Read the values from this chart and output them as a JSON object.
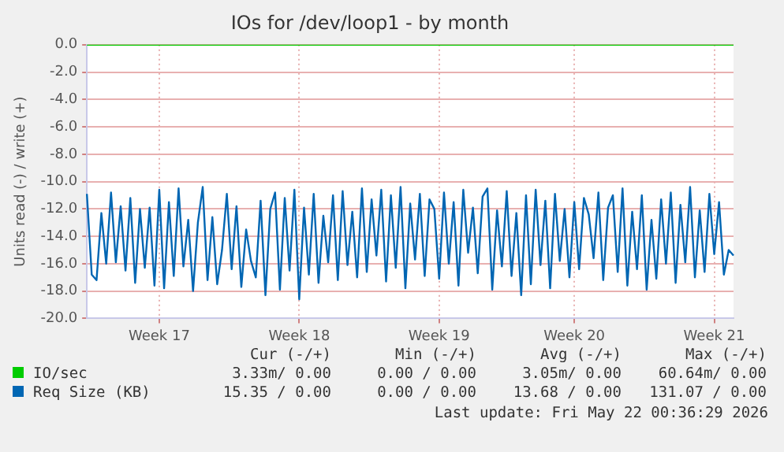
{
  "chart_data": {
    "type": "line",
    "title": "IOs for /dev/loop1 - by month",
    "ylabel": "Units read (-) / write (+)",
    "categories": [
      null,
      null,
      null,
      null,
      null,
      null,
      null,
      null,
      null,
      null,
      null,
      null,
      null,
      null,
      null,
      "Week 17",
      null,
      null,
      null,
      null,
      null,
      null,
      null,
      null,
      null,
      null,
      null,
      null,
      null,
      null,
      null,
      null,
      null,
      null,
      null,
      null,
      null,
      null,
      null,
      null,
      null,
      null,
      null,
      null,
      "Week 18",
      null,
      null,
      null,
      null,
      null,
      null,
      null,
      null,
      null,
      null,
      null,
      null,
      null,
      null,
      null,
      null,
      null,
      null,
      null,
      null,
      null,
      null,
      null,
      null,
      null,
      null,
      null,
      null,
      "Week 19",
      null,
      null,
      null,
      null,
      null,
      null,
      null,
      null,
      null,
      null,
      null,
      null,
      null,
      null,
      null,
      null,
      null,
      null,
      null,
      null,
      null,
      null,
      null,
      null,
      null,
      null,
      null,
      "Week 20",
      null,
      null,
      null,
      null,
      null,
      null,
      null,
      null,
      null,
      null,
      null,
      null,
      null,
      null,
      null,
      null,
      null,
      null,
      null,
      null,
      null,
      null,
      null,
      null,
      null,
      null,
      null,
      null,
      "Week 21",
      null,
      null,
      null,
      null
    ],
    "ylim": [
      -20,
      0
    ],
    "yticks": [
      {
        "value": 0,
        "label": "0.0"
      },
      {
        "value": -2,
        "label": "-2.0"
      },
      {
        "value": -4,
        "label": "-4.0"
      },
      {
        "value": -6,
        "label": "-6.0"
      },
      {
        "value": -8,
        "label": "-8.0"
      },
      {
        "value": -10,
        "label": "-10.0"
      },
      {
        "value": -12,
        "label": "-12.0"
      },
      {
        "value": -14,
        "label": "-14.0"
      },
      {
        "value": -16,
        "label": "-16.0"
      },
      {
        "value": -18,
        "label": "-18.0"
      },
      {
        "value": -20,
        "label": "-20.0"
      }
    ],
    "grid": true,
    "legend": "bottom",
    "marker": "none",
    "line_style": "solid",
    "series": [
      {
        "name": "IO/sec",
        "color": "#00cc00",
        "values": [
          0,
          0,
          0,
          0,
          0,
          0,
          0,
          0,
          0,
          0,
          0,
          0,
          0,
          0,
          0,
          0,
          0,
          0,
          0,
          0,
          0,
          0,
          0,
          0,
          0,
          0,
          0,
          0,
          0,
          0,
          0,
          0,
          0,
          0,
          0,
          0,
          0,
          0,
          0,
          0,
          0,
          0,
          0,
          0,
          0,
          0,
          0,
          0,
          0,
          0,
          0,
          0,
          0,
          0,
          0,
          0,
          0,
          0,
          0,
          0,
          0,
          0,
          0,
          0,
          0,
          0,
          0,
          0,
          0,
          0,
          0,
          0,
          0,
          0,
          0,
          0,
          0,
          0,
          0,
          0,
          0,
          0,
          0,
          0,
          0,
          0,
          0,
          0,
          0,
          0,
          0,
          0,
          0,
          0,
          0,
          0,
          0,
          0,
          0,
          0,
          0,
          0,
          0,
          0,
          0,
          0,
          0,
          0,
          0,
          0,
          0,
          0,
          0,
          0,
          0,
          0,
          0,
          0,
          0,
          0,
          0,
          0,
          0,
          0,
          0,
          0,
          0,
          0,
          0,
          0,
          0,
          0,
          0,
          0,
          0
        ]
      },
      {
        "name": "Req Size (KB)",
        "color": "#0066b3",
        "values": [
          -10.9,
          -16.8,
          -17.2,
          -12.3,
          -16.0,
          -10.8,
          -15.9,
          -11.8,
          -16.5,
          -11.2,
          -17.4,
          -12.0,
          -16.3,
          -11.9,
          -17.6,
          -10.6,
          -17.8,
          -11.5,
          -16.9,
          -10.5,
          -16.2,
          -12.8,
          -18.0,
          -13.0,
          -10.4,
          -17.2,
          -12.6,
          -17.5,
          -15.0,
          -10.9,
          -16.4,
          -11.8,
          -17.7,
          -13.5,
          -15.8,
          -17.0,
          -11.4,
          -18.3,
          -12.0,
          -10.8,
          -17.9,
          -11.2,
          -16.5,
          -10.6,
          -18.6,
          -11.9,
          -16.8,
          -10.9,
          -17.4,
          -12.5,
          -15.9,
          -11.0,
          -17.2,
          -10.7,
          -16.1,
          -12.2,
          -17.0,
          -10.5,
          -16.6,
          -11.3,
          -15.4,
          -10.6,
          -17.3,
          -11.0,
          -16.3,
          -10.4,
          -17.8,
          -11.6,
          -15.7,
          -10.9,
          -16.9,
          -11.3,
          -12.0,
          -17.1,
          -10.8,
          -16.0,
          -11.5,
          -17.6,
          -10.6,
          -15.2,
          -11.9,
          -16.7,
          -11.1,
          -10.5,
          -17.9,
          -12.1,
          -16.2,
          -10.7,
          -16.9,
          -12.3,
          -18.3,
          -11.0,
          -17.5,
          -10.6,
          -16.1,
          -11.4,
          -17.8,
          -10.9,
          -15.8,
          -12.0,
          -17.0,
          -11.5,
          -16.4,
          -11.2,
          -12.4,
          -15.6,
          -10.8,
          -17.2,
          -11.9,
          -11.0,
          -16.6,
          -10.5,
          -17.6,
          -12.2,
          -16.4,
          -11.0,
          -17.9,
          -12.8,
          -17.1,
          -11.3,
          -16.0,
          -10.8,
          -17.4,
          -11.7,
          -15.9,
          -10.4,
          -17.0,
          -12.1,
          -16.6,
          -10.9,
          -15.3,
          -11.5,
          -16.8,
          -15.0,
          -15.4
        ]
      }
    ],
    "annotations": [
      "Cur (-/+)",
      "Min (-/+)",
      "Avg (-/+)",
      "Max (-/+)",
      "3.33m/ 0.00",
      "0.00 / 0.00",
      "3.05m/ 0.00",
      "60.64m/ 0.00",
      "15.35 / 0.00",
      "0.00 / 0.00",
      "13.68 / 0.00",
      "131.07 / 0.00",
      "Last update: Fri May 22 00:36:29 2026"
    ]
  }
}
